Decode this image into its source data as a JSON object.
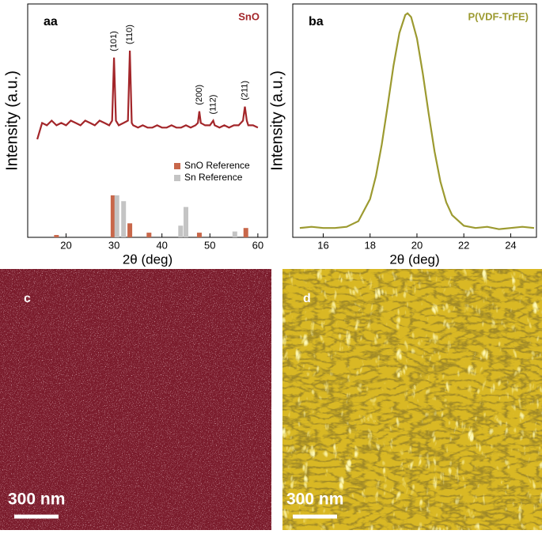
{
  "chart_data": [
    {
      "type": "line",
      "panel_label": "aa",
      "xlabel": "2θ (deg)",
      "ylabel": "Intensity (a.u.)",
      "xlim": [
        12,
        62
      ],
      "ylim": [
        0,
        100
      ],
      "xticks": [
        20,
        30,
        40,
        50,
        60
      ],
      "series": [
        {
          "name": "SnO",
          "color": "#a3262a",
          "x": [
            14,
            15,
            16,
            17,
            18,
            19,
            20,
            21,
            22,
            23,
            24,
            25,
            26,
            27,
            28,
            29,
            29.6,
            30,
            30.4,
            31,
            32,
            32.9,
            33.3,
            33.7,
            34,
            35,
            36,
            37,
            38,
            39,
            40,
            41,
            42,
            43,
            44,
            45,
            46,
            47,
            47.5,
            47.8,
            48.1,
            49,
            50,
            50.7,
            51,
            52,
            53,
            54,
            55,
            56,
            56.9,
            57.3,
            57.7,
            58,
            59,
            60
          ],
          "values": [
            42,
            49,
            48,
            50,
            48,
            49,
            48,
            50,
            49,
            48,
            50,
            49,
            48,
            50,
            49,
            48,
            50,
            77,
            50,
            48,
            49,
            50,
            80,
            49,
            48,
            47,
            48,
            47,
            47,
            48,
            47,
            47,
            48,
            47,
            47,
            48,
            47,
            48,
            49,
            54,
            49,
            48,
            48,
            50,
            48,
            47,
            48,
            47,
            48,
            48,
            50,
            56,
            50,
            48,
            48,
            47
          ]
        },
        {
          "name": "SnO Reference",
          "type": "bar",
          "color": "#c8674a",
          "x": [
            18,
            29.8,
            33.3,
            37.3,
            47.8,
            57.5
          ],
          "values": [
            1,
            18,
            6,
            2,
            2,
            4
          ]
        },
        {
          "name": "Sn Reference",
          "type": "bar",
          "color": "#c4c4c4",
          "x": [
            30.6,
            32,
            43.9,
            45,
            55.2
          ],
          "values": [
            18,
            15.5,
            5,
            13,
            2.5
          ]
        }
      ],
      "annotations": [
        {
          "text": "(101)",
          "x": 30
        },
        {
          "text": "(110)",
          "x": 33.3
        },
        {
          "text": "(200)",
          "x": 47.8
        },
        {
          "text": "(112)",
          "x": 50.7
        },
        {
          "text": "(211)",
          "x": 57.3
        }
      ]
    },
    {
      "type": "line",
      "panel_label": "ba",
      "xlabel": "2θ (deg)",
      "ylabel": "Intensity (a.u.)",
      "xlim": [
        14.7,
        25.1
      ],
      "ylim": [
        0,
        100
      ],
      "xticks": [
        16,
        18,
        20,
        22,
        24
      ],
      "series": [
        {
          "name": "P(VDF-TrFE)",
          "color": "#9c9a30",
          "x": [
            15,
            15.5,
            16,
            16.5,
            17,
            17.5,
            18,
            18.25,
            18.5,
            18.75,
            19,
            19.25,
            19.5,
            19.6,
            19.75,
            20,
            20.25,
            20.5,
            20.75,
            21,
            21.25,
            21.5,
            22,
            22.5,
            23,
            23.5,
            24,
            24.5,
            25
          ],
          "values": [
            4,
            4.5,
            4,
            4,
            4.5,
            6.9,
            16.4,
            26.2,
            39.8,
            56.3,
            73.5,
            87.6,
            95.3,
            96,
            94.4,
            85.2,
            70.1,
            52.9,
            36.8,
            23.9,
            15,
            9.5,
            5,
            4,
            4.5,
            3.5,
            4,
            4.5,
            4
          ]
        }
      ]
    }
  ],
  "images": [
    {
      "label": "c",
      "scale_bar": "300 nm"
    },
    {
      "label": "d",
      "scale_bar": "300 nm"
    }
  ]
}
